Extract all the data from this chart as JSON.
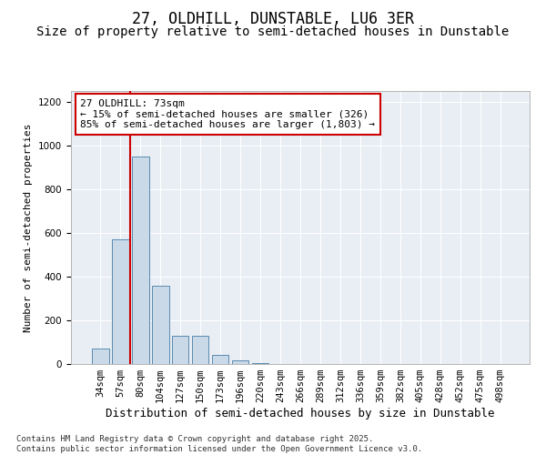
{
  "title1": "27, OLDHILL, DUNSTABLE, LU6 3ER",
  "title2": "Size of property relative to semi-detached houses in Dunstable",
  "xlabel": "Distribution of semi-detached houses by size in Dunstable",
  "ylabel": "Number of semi-detached properties",
  "categories": [
    "34sqm",
    "57sqm",
    "80sqm",
    "104sqm",
    "127sqm",
    "150sqm",
    "173sqm",
    "196sqm",
    "220sqm",
    "243sqm",
    "266sqm",
    "289sqm",
    "312sqm",
    "336sqm",
    "359sqm",
    "382sqm",
    "405sqm",
    "428sqm",
    "452sqm",
    "475sqm",
    "498sqm"
  ],
  "values": [
    70,
    570,
    950,
    360,
    130,
    130,
    40,
    15,
    5,
    2,
    0,
    0,
    0,
    0,
    0,
    0,
    0,
    0,
    0,
    0,
    0
  ],
  "bar_color": "#c9d9e8",
  "bar_edge_color": "#5a8ab0",
  "vline_color": "#cc0000",
  "vline_x": 1.5,
  "annotation_text": "27 OLDHILL: 73sqm\n← 15% of semi-detached houses are smaller (326)\n85% of semi-detached houses are larger (1,803) →",
  "annotation_box_color": "#ffffff",
  "annotation_box_edge": "#cc0000",
  "ylim": [
    0,
    1250
  ],
  "yticks": [
    0,
    200,
    400,
    600,
    800,
    1000,
    1200
  ],
  "background_color": "#e8eef4",
  "footer_text": "Contains HM Land Registry data © Crown copyright and database right 2025.\nContains public sector information licensed under the Open Government Licence v3.0.",
  "title1_fontsize": 12,
  "title2_fontsize": 10,
  "xlabel_fontsize": 9,
  "ylabel_fontsize": 8,
  "tick_fontsize": 7.5,
  "annotation_fontsize": 8,
  "footer_fontsize": 6.5
}
